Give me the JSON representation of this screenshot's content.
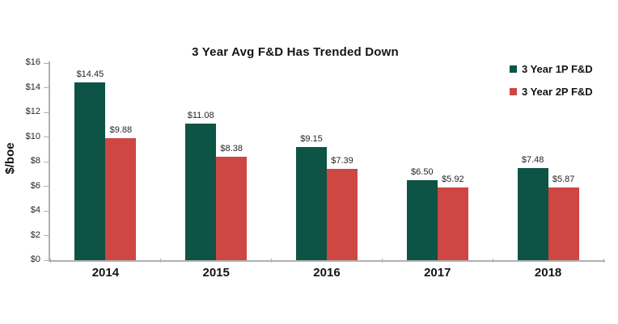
{
  "chart_data": {
    "type": "bar",
    "title": "3 Year Avg F&D Has Trended Down",
    "xlabel": "",
    "ylabel": "$/boe",
    "categories": [
      "2014",
      "2015",
      "2016",
      "2017",
      "2018"
    ],
    "series": [
      {
        "name": "3 Year 1P F&D",
        "color": "#0d5446",
        "values": [
          14.45,
          11.08,
          9.15,
          6.5,
          7.48
        ],
        "labels": [
          "$14.45",
          "$11.08",
          "$9.15",
          "$6.50",
          "$7.48"
        ]
      },
      {
        "name": "3 Year 2P F&D",
        "color": "#ce4743",
        "values": [
          9.88,
          8.38,
          7.39,
          5.92,
          5.87
        ],
        "labels": [
          "$9.88",
          "$8.38",
          "$7.39",
          "$5.92",
          "$5.87"
        ]
      }
    ],
    "ylim": [
      0,
      16
    ],
    "ytick_step": 2,
    "ytick_labels": [
      "$0",
      "$2",
      "$4",
      "$6",
      "$8",
      "$10",
      "$12",
      "$14",
      "$16"
    ],
    "grid": false,
    "legend_position": "top-right",
    "axis_color": "#b0b0b0",
    "text_color": "#141414"
  }
}
